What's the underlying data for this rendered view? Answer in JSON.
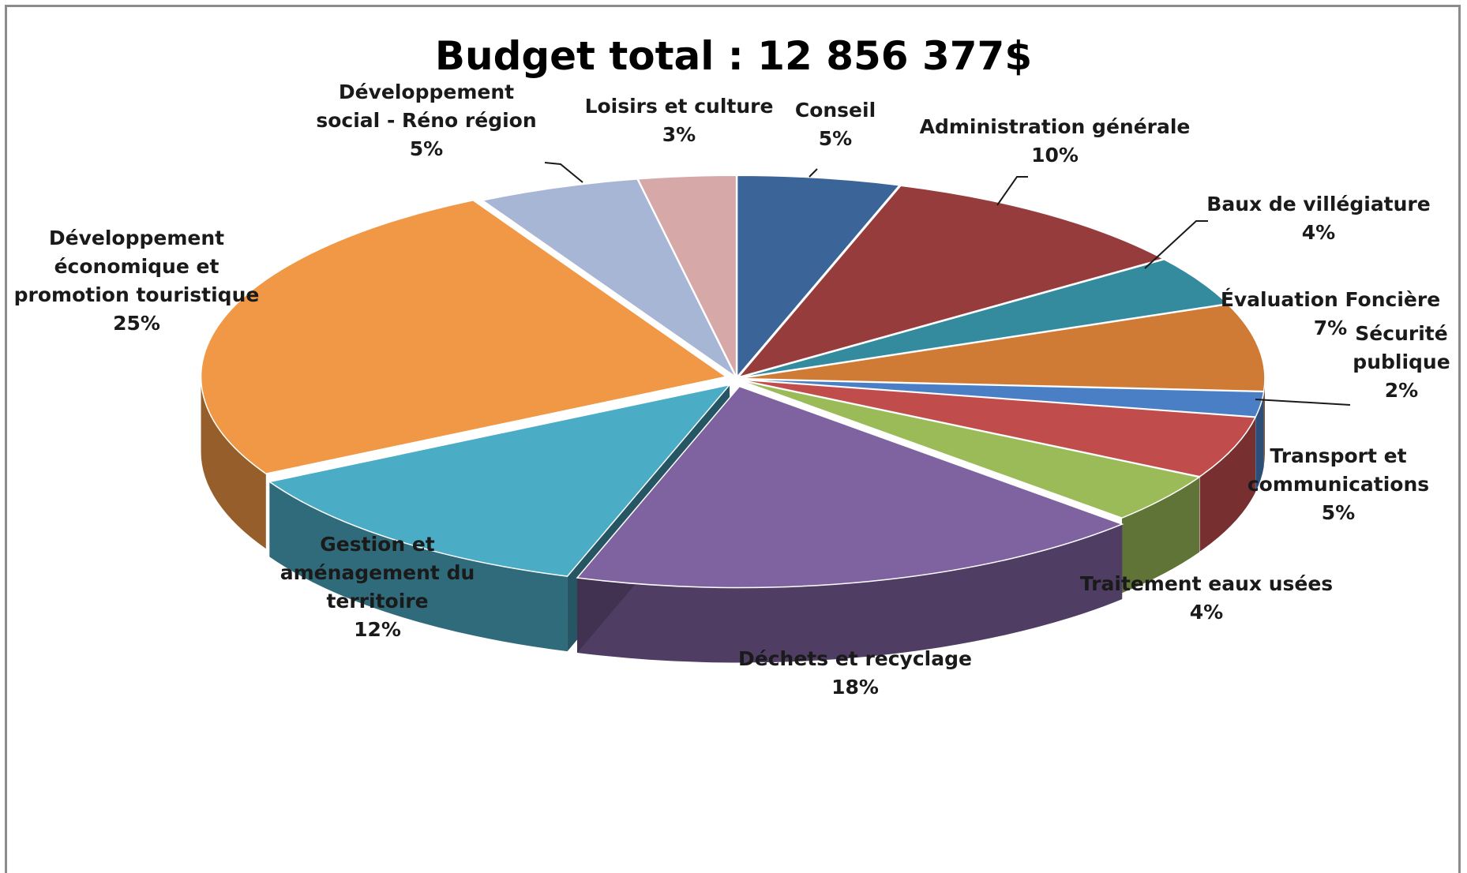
{
  "chart_data": {
    "type": "pie",
    "title": "Budget total : 12 856 377$",
    "slices": [
      {
        "label": "Conseil",
        "value": 5,
        "value_label": "5%",
        "color": "#3B6598"
      },
      {
        "label": "Administration générale",
        "value": 10,
        "value_label": "10%",
        "color": "#963C3C"
      },
      {
        "label": "Baux de villégiature",
        "value": 4,
        "value_label": "4%",
        "color": "#358B9E"
      },
      {
        "label": "Évaluation Foncière",
        "value": 7,
        "value_label": "7%",
        "color": "#CF7B35"
      },
      {
        "label": "Sécurité publique",
        "value": 2,
        "value_label": "2%",
        "color": "#4A7EC5"
      },
      {
        "label": "Transport et communications",
        "value": 5,
        "value_label": "5%",
        "color": "#C04D4B"
      },
      {
        "label": "Traitement eaux usées",
        "value": 4,
        "value_label": "4%",
        "color": "#9BBB59"
      },
      {
        "label": "Déchets et recyclage",
        "value": 18,
        "value_label": "18%",
        "color": "#7F63A0"
      },
      {
        "label": "Gestion et aménagement du territoire",
        "value": 12,
        "value_label": "12%",
        "color": "#4BACC6"
      },
      {
        "label": "Développement économique et promotion touristique",
        "value": 25,
        "value_label": "25%",
        "color": "#F09845"
      },
      {
        "label": "Développement social - Réno région",
        "value": 5,
        "value_label": "5%",
        "color": "#A8B6D6"
      },
      {
        "label": "Loisirs et culture",
        "value": 3,
        "value_label": "3%",
        "color": "#D6A8A8"
      }
    ],
    "legend": "none",
    "style": "3d-exploded"
  }
}
